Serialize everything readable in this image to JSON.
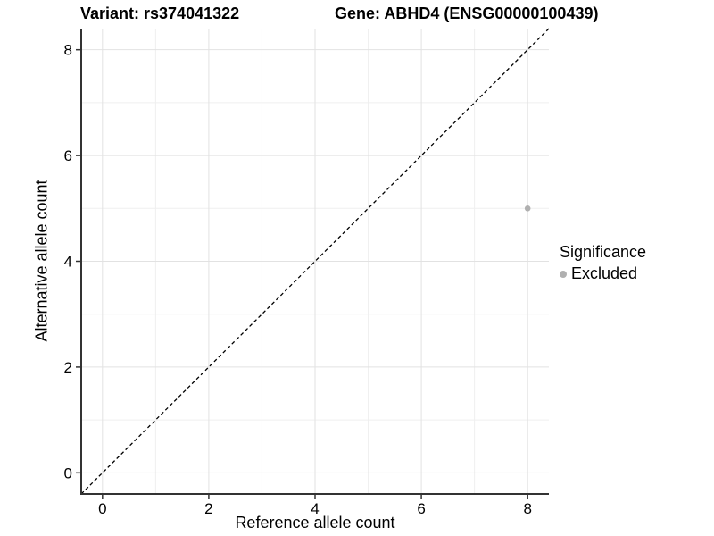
{
  "chart_data": {
    "type": "scatter",
    "title_left": "Variant: rs374041322",
    "title_right": "Gene: ABHD4 (ENSG00000100439)",
    "xlabel": "Reference allele count",
    "ylabel": "Alternative allele count",
    "xlim": [
      -0.4,
      8.4
    ],
    "ylim": [
      -0.4,
      8.4
    ],
    "x_ticks": [
      0,
      2,
      4,
      6,
      8
    ],
    "y_ticks": [
      0,
      2,
      4,
      6,
      8
    ],
    "x_minor_ticks": [
      1,
      3,
      5,
      7
    ],
    "y_minor_ticks": [
      1,
      3,
      5,
      7
    ],
    "grid": true,
    "series": [
      {
        "name": "Excluded",
        "color": "#b0b0b0",
        "points": [
          {
            "x": 8,
            "y": 5
          }
        ]
      }
    ],
    "reference_line": {
      "style": "dashed",
      "from": [
        -0.4,
        -0.4
      ],
      "to": [
        8.4,
        8.4
      ],
      "color": "#000000"
    },
    "legend": {
      "title": "Significance",
      "position": "right",
      "entries": [
        {
          "label": "Excluded",
          "color": "#b0b0b0"
        }
      ]
    },
    "colors": {
      "axis_line": "#333333",
      "tick_text": "#000000",
      "major_grid": "#e2e2e2",
      "minor_grid": "#efefef",
      "background": "#ffffff"
    }
  }
}
